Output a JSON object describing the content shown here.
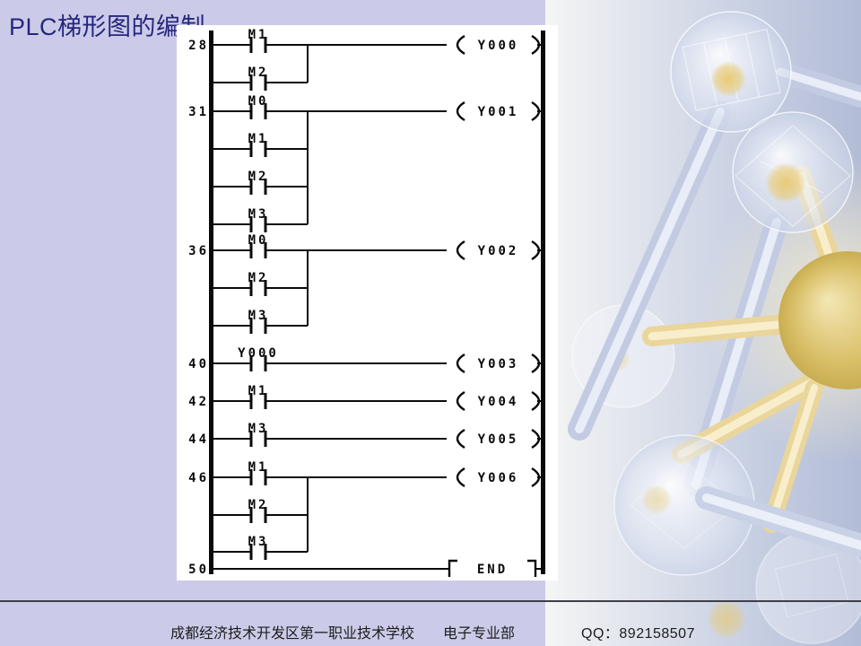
{
  "slide": {
    "title": "PLC梯形图的编制"
  },
  "ladder": {
    "rungs": [
      {
        "step": "28",
        "contacts": [
          "M1",
          "M2"
        ],
        "output": "Y000",
        "output_type": "coil"
      },
      {
        "step": "31",
        "contacts": [
          "M0",
          "M1",
          "M2",
          "M3"
        ],
        "output": "Y001",
        "output_type": "coil"
      },
      {
        "step": "36",
        "contacts": [
          "M0",
          "M2",
          "M3"
        ],
        "output": "Y002",
        "output_type": "coil"
      },
      {
        "step": "40",
        "contacts": [
          "Y000"
        ],
        "output": "Y003",
        "output_type": "coil"
      },
      {
        "step": "42",
        "contacts": [
          "M1"
        ],
        "output": "Y004",
        "output_type": "coil"
      },
      {
        "step": "44",
        "contacts": [
          "M3"
        ],
        "output": "Y005",
        "output_type": "coil"
      },
      {
        "step": "46",
        "contacts": [
          "M1",
          "M2",
          "M3"
        ],
        "output": "Y006",
        "output_type": "coil"
      },
      {
        "step": "50",
        "contacts": [],
        "output": "END",
        "output_type": "end"
      }
    ]
  },
  "footer": {
    "school": "成都经济技术开发区第一职业技术学校",
    "department": "电子专业部",
    "qq": "QQ：892158507"
  },
  "colors": {
    "slide_background": "#cbcbe9",
    "title_text": "#26267e",
    "panel_background": "#ffffff",
    "ladder_ink": "#0a0a0a",
    "footer_line": "#3f3f48",
    "footer_text": "#1c1c1c",
    "molecule_gold": "#d8bf6a",
    "molecule_blue": "#c2cbe2"
  }
}
